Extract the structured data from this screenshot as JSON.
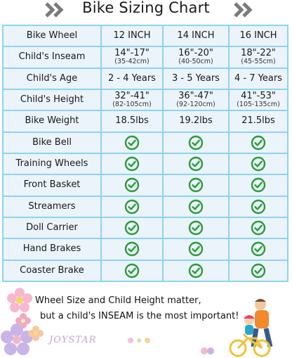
{
  "title": "Bike Sizing Chart",
  "columns": [
    "Bike Wheel",
    "12 INCH",
    "14 INCH",
    "16 INCH"
  ],
  "rows": [
    {
      "label": "Child's Inseam",
      "values": [
        "14\"-17\"",
        "16\"-20\"",
        "18\"-22\""
      ],
      "subs": [
        "(35-42cm)",
        "(40-50cm)",
        "(45-55cm)"
      ]
    },
    {
      "label": "Child's Age",
      "values": [
        "2 - 4 Years",
        "3 - 5 Years",
        "4 - 7 Years"
      ]
    },
    {
      "label": "Child's Height",
      "values": [
        "32\"-41\"",
        "36\"-47\"",
        "41\"-53\""
      ],
      "subs": [
        "(82-105cm)",
        "(92-120cm)",
        "(105-135cm)"
      ]
    },
    {
      "label": "Bike Weight",
      "values": [
        "18.5lbs",
        "19.2lbs",
        "21.5lbs"
      ]
    },
    {
      "label": "Bike Bell",
      "checks": [
        true,
        true,
        true
      ]
    },
    {
      "label": "Training Wheels",
      "checks": [
        true,
        true,
        true
      ]
    },
    {
      "label": "Front Basket",
      "checks": [
        true,
        true,
        true
      ]
    },
    {
      "label": "Streamers",
      "checks": [
        true,
        true,
        true
      ]
    },
    {
      "label": "Doll Carrier",
      "checks": [
        true,
        true,
        true
      ]
    },
    {
      "label": "Hand Brakes",
      "checks": [
        true,
        true,
        true
      ]
    },
    {
      "label": "Coaster Brake",
      "checks": [
        true,
        true,
        true
      ]
    }
  ],
  "note_line1": "Wheel Size and Child Height matter,",
  "note_line2": "but a child's INSEAM is the most important!",
  "brand": "JOYSTAR",
  "colors": {
    "border": "#8fd3ef",
    "cell_bg": "#eaf4fa",
    "check": "#2f9a3a",
    "chevron": "#7a7a7a"
  },
  "icons": {
    "check": "check-circle-icon",
    "chevron": "double-chevron-icon"
  }
}
